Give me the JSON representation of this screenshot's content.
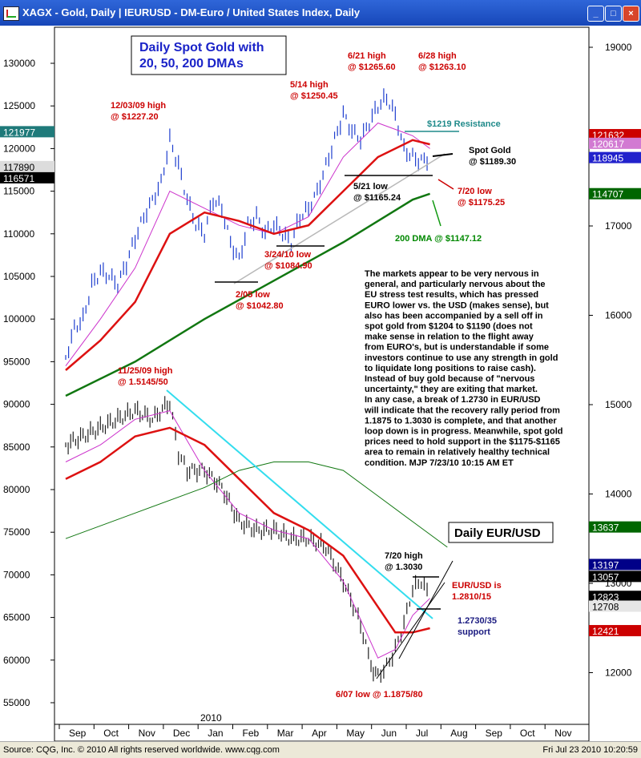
{
  "window": {
    "title": "XAGX - Gold, Daily   |   IEURUSD - DM-Euro / United States Index, Daily",
    "min_label": "_",
    "max_label": "□",
    "close_label": "×"
  },
  "status": {
    "source": "Source: CQG, Inc. © 2010 All rights reserved worldwide. www.cqg.com",
    "datetime": "Fri Jul 23 2010  10:20:59"
  },
  "chart_data": [
    {
      "type": "line",
      "title": "Daily Spot Gold with\n20, 50, 200 DMAs",
      "x_months": [
        "Sep",
        "Oct",
        "Nov",
        "Dec",
        "Jan",
        "Feb",
        "Mar",
        "Apr",
        "May",
        "Jun",
        "Jul",
        "Aug",
        "Sep",
        "Oct",
        "Nov"
      ],
      "year_label": "2010",
      "left_ticks": [
        "130000",
        "125000",
        "120000",
        "115000",
        "110000",
        "105000",
        "100000",
        "95000",
        "90000",
        "85000",
        "80000",
        "75000",
        "70000",
        "65000",
        "60000",
        "55000"
      ],
      "right_ticks": [
        "19000",
        "18000",
        "17000",
        "16000",
        "15000",
        "14000",
        "13000",
        "12000"
      ],
      "ylim": [
        900,
        1320
      ],
      "series": [
        {
          "x": [
            0,
            0.25,
            0.5,
            0.75,
            1,
            1.25,
            1.5,
            1.75,
            2,
            2.25,
            2.5,
            2.75,
            3,
            3.25,
            3.5,
            3.75,
            4,
            4.25,
            4.5,
            4.75,
            5,
            5.25,
            5.5,
            5.75,
            6,
            6.25,
            6.5,
            6.75,
            7,
            7.25,
            7.5,
            7.75,
            8,
            8.25,
            8.5,
            8.75,
            9,
            9.25,
            9.5,
            9.75,
            10,
            10.25,
            10.5
          ],
          "values": [
            955,
            990,
            1000,
            1040,
            1055,
            1050,
            1040,
            1065,
            1095,
            1120,
            1140,
            1160,
            1210,
            1180,
            1140,
            1110,
            1100,
            1140,
            1130,
            1090,
            1070,
            1110,
            1120,
            1100,
            1110,
            1100,
            1090,
            1120,
            1130,
            1150,
            1180,
            1210,
            1240,
            1220,
            1210,
            1230,
            1250,
            1260,
            1240,
            1200,
            1190,
            1185,
            1189
          ]
        },
        {
          "name": "20 DMA",
          "x": [
            0,
            1,
            2,
            3,
            4,
            5,
            6,
            7,
            8,
            9,
            10,
            10.5
          ],
          "values": [
            945,
            1000,
            1060,
            1150,
            1130,
            1110,
            1100,
            1120,
            1190,
            1230,
            1215,
            1200
          ]
        },
        {
          "name": "50 DMA",
          "x": [
            0,
            1,
            2,
            3,
            4,
            5,
            6,
            7,
            8,
            9,
            10,
            10.5
          ],
          "values": [
            940,
            975,
            1020,
            1100,
            1125,
            1115,
            1100,
            1110,
            1150,
            1190,
            1210,
            1205
          ]
        },
        {
          "name": "200 DMA",
          "x": [
            0,
            2,
            4,
            6,
            8,
            9,
            10,
            10.5
          ],
          "values": [
            910,
            950,
            1000,
            1045,
            1090,
            1115,
            1140,
            1147
          ]
        }
      ],
      "price_tags": [
        {
          "label": "121977",
          "value": 1219.77,
          "color": "#1f7a7a"
        },
        {
          "label": "117890",
          "value": 1178.9,
          "color": "#dcdcdc"
        },
        {
          "label": "116571",
          "value": 1165.71,
          "color": "#000000"
        },
        {
          "label": "121632",
          "value": 1216.32,
          "color": "#cc0000"
        },
        {
          "label": "120617",
          "value": 1206.17,
          "color": "#d27ad2"
        },
        {
          "label": "118945",
          "value": 1189.45,
          "color": "#2222cc"
        },
        {
          "label": "114707",
          "value": 1147.07,
          "color": "#006600"
        }
      ],
      "annotations": [
        {
          "id": "dec03",
          "text": "12/03/09 high\n@ $1227.20",
          "color": "#cc0000"
        },
        {
          "id": "may14",
          "text": "5/14 high\n@ $1250.45",
          "color": "#cc0000"
        },
        {
          "id": "jun21",
          "text": "6/21 high\n@ $1265.60",
          "color": "#cc0000"
        },
        {
          "id": "jun28",
          "text": "6/28 high\n@ $1263.10",
          "color": "#cc0000"
        },
        {
          "id": "res",
          "text": "$1219 Resistance",
          "color": "#1f8a8a"
        },
        {
          "id": "spot",
          "text": "Spot Gold\n@ $1189.30",
          "color": "#000000"
        },
        {
          "id": "may21",
          "text": "5/21 low\n@ $1165.24",
          "color": "#000000"
        },
        {
          "id": "jul20",
          "text": "7/20 low\n@ $1175.25",
          "color": "#cc0000"
        },
        {
          "id": "dma200",
          "text": "200 DMA @ $1147.12",
          "color": "#008800"
        },
        {
          "id": "mar24",
          "text": "3/24/10 low\n@ $1084.90",
          "color": "#cc0000"
        },
        {
          "id": "feb05",
          "text": "2/05 low\n@ $1042.80",
          "color": "#cc0000"
        }
      ]
    },
    {
      "type": "line",
      "title": "Daily EUR/USD",
      "ylim": [
        1.18,
        1.52
      ],
      "series": [
        {
          "x": [
            0,
            0.5,
            1,
            1.5,
            2,
            2.5,
            3,
            3.25,
            3.5,
            4,
            4.5,
            5,
            5.5,
            6,
            6.5,
            7,
            7.5,
            8,
            8.5,
            8.8,
            9,
            9.25,
            9.5,
            9.75,
            10,
            10.25,
            10.5
          ],
          "values": [
            1.46,
            1.47,
            1.48,
            1.49,
            1.5,
            1.49,
            1.51,
            1.45,
            1.43,
            1.43,
            1.41,
            1.37,
            1.36,
            1.36,
            1.35,
            1.35,
            1.34,
            1.3,
            1.25,
            1.2,
            1.19,
            1.2,
            1.22,
            1.25,
            1.29,
            1.3,
            1.28
          ]
        },
        {
          "name": "20 DMA",
          "x": [
            0,
            1,
            2,
            3,
            4,
            5,
            6,
            7,
            8,
            9,
            9.5,
            10,
            10.5
          ],
          "values": [
            1.44,
            1.46,
            1.49,
            1.5,
            1.43,
            1.38,
            1.36,
            1.35,
            1.3,
            1.21,
            1.22,
            1.26,
            1.28
          ]
        },
        {
          "name": "50 DMA",
          "x": [
            0,
            1,
            2,
            3,
            4,
            5,
            6,
            7,
            8,
            9,
            9.5,
            10,
            10.5
          ],
          "values": [
            1.42,
            1.44,
            1.47,
            1.48,
            1.46,
            1.42,
            1.38,
            1.36,
            1.33,
            1.27,
            1.24,
            1.24,
            1.245
          ]
        },
        {
          "name": "200 DMA",
          "x": [
            0,
            2,
            4,
            5,
            6,
            7,
            8,
            9,
            10,
            11
          ],
          "values": [
            1.35,
            1.38,
            1.41,
            1.43,
            1.44,
            1.44,
            1.43,
            1.4,
            1.37,
            1.34
          ]
        }
      ],
      "price_tags": [
        {
          "label": "13637",
          "value": 1.3637,
          "color": "#006600"
        },
        {
          "label": "13197",
          "value": 1.3197,
          "color": "#000088"
        },
        {
          "label": "13057",
          "value": 1.3057,
          "color": "#000000"
        },
        {
          "label": "12823",
          "value": 1.2823,
          "color": "#000000"
        },
        {
          "label": "12708",
          "value": 1.2708,
          "color": "#e6e6e6"
        },
        {
          "label": "12421",
          "value": 1.2421,
          "color": "#cc0000"
        }
      ],
      "annotations": [
        {
          "id": "nov25",
          "text": "11/25/09 high\n@ 1.5145/50",
          "color": "#cc0000"
        },
        {
          "id": "jul20h",
          "text": "7/20 high\n@ 1.3030",
          "color": "#000000"
        },
        {
          "id": "eurnow",
          "text": "EUR/USD is\n1.2810/15",
          "color": "#cc0000"
        },
        {
          "id": "supp",
          "text": "1.2730/35\nsupport",
          "color": "#1a1a80"
        },
        {
          "id": "jun07",
          "text": "6/07 low @ 1.1875/80",
          "color": "#cc0000"
        }
      ]
    }
  ],
  "commentary": "The markets appear to be very nervous in\ngeneral, and particularly nervous about the\nEU stress test results, which has pressed\nEURO lower vs. the USD (makes sense), but\nalso has been accompanied by a sell off in\nspot gold from $1204 to $1190 (does not\nmake sense in relation to the flight away\nfrom EURO's, but is understandable if some\ninvestors continue to use any strength in gold\nto liquidate long positions to raise cash).\nInstead of buy gold because of \"nervous\nuncertainty,\" they are exiting that market.\nIn any case, a break of 1.2730 in EUR/USD\nwill indicate that the recovery rally period from\n1.1875 to 1.3030 is complete, and that another\nloop down is in progress. Meanwhile, spot gold\nprices need to hold support in the $1175-$1165\narea to remain in relatively healthy technical\ncondition.  MJP  7/23/10  10:15 AM ET"
}
